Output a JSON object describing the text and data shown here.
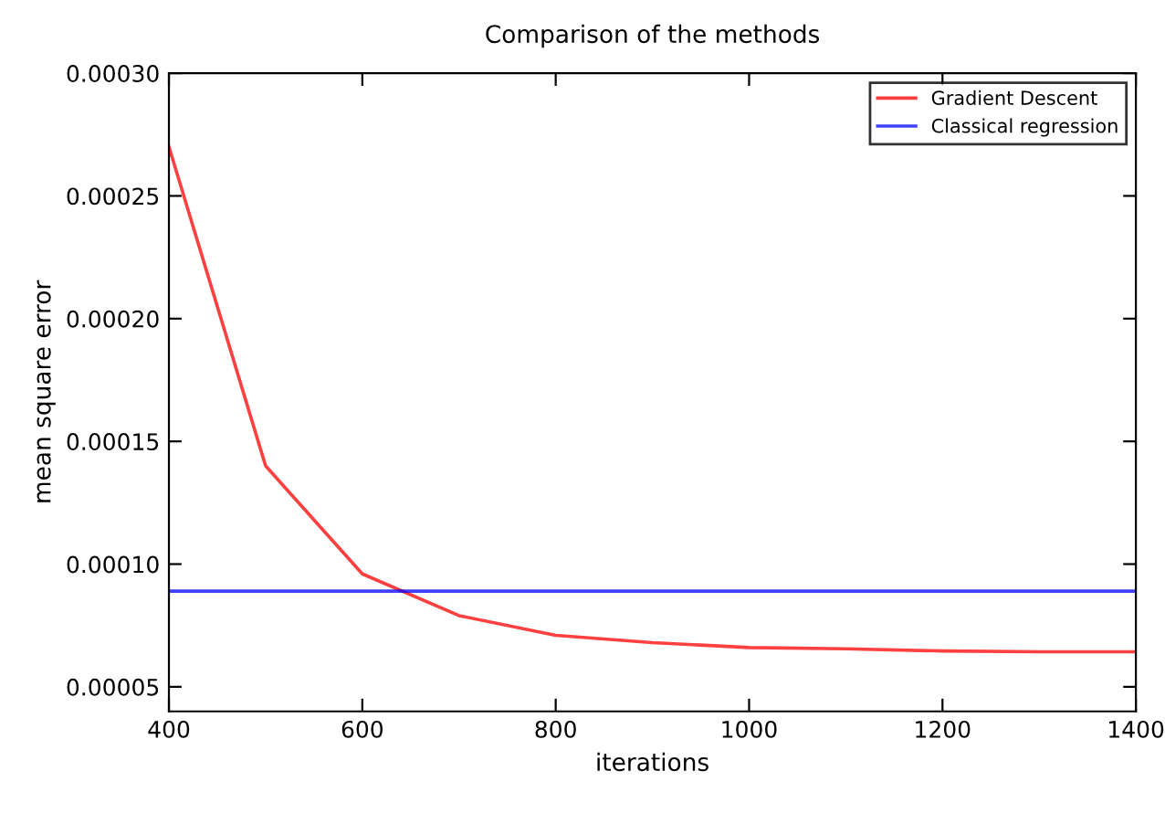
{
  "chart_data": {
    "type": "line",
    "title": "Comparison of the methods",
    "xlabel": "iterations",
    "ylabel": "mean square error",
    "xlim": [
      400,
      1400
    ],
    "xticks": [
      400,
      600,
      800,
      1000,
      1200,
      1400
    ],
    "ylim": [
      4e-05,
      0.0003
    ],
    "yticks": [
      {
        "value": 5e-05,
        "label": "0.00005"
      },
      {
        "value": 0.0001,
        "label": "0.00010"
      },
      {
        "value": 0.00015,
        "label": "0.00015"
      },
      {
        "value": 0.0002,
        "label": "0.00020"
      },
      {
        "value": 0.00025,
        "label": "0.00025"
      },
      {
        "value": 0.0003,
        "label": "0.00030"
      }
    ],
    "grid": false,
    "legend": "top right",
    "series": [
      {
        "name": "Gradient Descent",
        "color": "#ff0000",
        "x": [
          400,
          500,
          600,
          700,
          800,
          900,
          1000,
          1100,
          1200,
          1300,
          1400
        ],
        "values": [
          0.00027,
          0.00014,
          9.6e-05,
          7.9e-05,
          7.1e-05,
          6.8e-05,
          6.6e-05,
          6.55e-05,
          6.46e-05,
          6.43e-05,
          6.43e-05
        ]
      },
      {
        "name": "Classical regression",
        "color": "#0000ff",
        "x": [
          400,
          1400
        ],
        "values": [
          8.9e-05,
          8.9e-05
        ]
      }
    ]
  }
}
